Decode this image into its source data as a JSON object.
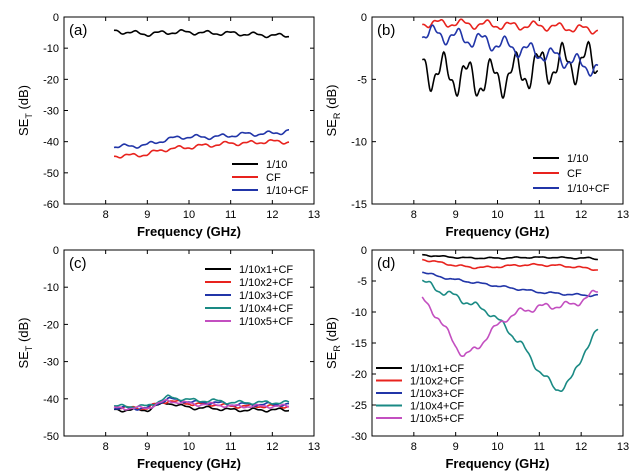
{
  "chart_data": [
    {
      "type": "line",
      "panel_label": "(a)",
      "xlabel": "Frequency (GHz)",
      "ylabel_main": "SE",
      "ylabel_sub": "T",
      "ylabel_unit": " (dB)",
      "xlim": [
        7,
        13
      ],
      "ylim": [
        -60,
        0
      ],
      "x_ticks": [
        8,
        9,
        10,
        11,
        12,
        13
      ],
      "y_ticks": [
        0,
        -10,
        -20,
        -30,
        -40,
        -50,
        -60
      ],
      "legend_position": "lower-right",
      "series": [
        {
          "name": "1/10",
          "color": "#000000",
          "ripple": 0.6,
          "x": [
            8.2,
            8.6,
            9.0,
            9.4,
            9.8,
            10.2,
            10.6,
            11.0,
            11.4,
            11.8,
            12.2,
            12.4
          ],
          "y": [
            -4.5,
            -5.0,
            -5.5,
            -5.0,
            -4.8,
            -5.0,
            -5.2,
            -5.2,
            -5.5,
            -5.8,
            -6.0,
            -6.0
          ]
        },
        {
          "name": "CF",
          "color": "#e8231e",
          "ripple": 0.6,
          "x": [
            8.2,
            8.6,
            9.0,
            9.4,
            9.8,
            10.2,
            10.6,
            11.0,
            11.4,
            11.8,
            12.2,
            12.4
          ],
          "y": [
            -44.5,
            -44.5,
            -44.0,
            -42.5,
            -42.0,
            -41.5,
            -41.0,
            -40.5,
            -40.5,
            -40.0,
            -40.0,
            -40.0
          ]
        },
        {
          "name": "1/10+CF",
          "color": "#2135a8",
          "ripple": 0.6,
          "x": [
            8.2,
            8.6,
            9.0,
            9.4,
            9.8,
            10.2,
            10.6,
            11.0,
            11.4,
            11.8,
            12.2,
            12.4
          ],
          "y": [
            -41.5,
            -41.5,
            -41.0,
            -39.5,
            -38.5,
            -38.5,
            -38.5,
            -38.0,
            -37.5,
            -37.5,
            -37.0,
            -36.5
          ]
        }
      ]
    },
    {
      "type": "line",
      "panel_label": "(b)",
      "xlabel": "Frequency (GHz)",
      "ylabel_main": "SE",
      "ylabel_sub": "R",
      "ylabel_unit": " (dB)",
      "xlim": [
        7,
        13
      ],
      "ylim": [
        -15,
        0
      ],
      "x_ticks": [
        8,
        9,
        10,
        11,
        12,
        13
      ],
      "y_ticks": [
        0,
        -5,
        -10,
        -15
      ],
      "legend_position": "lower-right",
      "series": [
        {
          "name": "1/10",
          "color": "#000000",
          "ripple": 1.4,
          "x": [
            8.2,
            8.6,
            9.0,
            9.4,
            9.8,
            10.2,
            10.6,
            11.0,
            11.4,
            11.8,
            12.2,
            12.4
          ],
          "y": [
            -4.0,
            -4.5,
            -4.7,
            -5.0,
            -5.0,
            -4.7,
            -4.4,
            -4.0,
            -3.8,
            -3.7,
            -3.6,
            -3.6
          ]
        },
        {
          "name": "CF",
          "color": "#e8231e",
          "ripple": 0.3,
          "x": [
            8.2,
            8.6,
            9.0,
            9.4,
            9.8,
            10.2,
            10.6,
            11.0,
            11.4,
            11.8,
            12.2,
            12.4
          ],
          "y": [
            -0.5,
            -0.5,
            -0.5,
            -0.6,
            -0.6,
            -0.7,
            -0.7,
            -0.7,
            -0.8,
            -0.9,
            -1.0,
            -1.0
          ]
        },
        {
          "name": "1/10+CF",
          "color": "#2135a8",
          "ripple": 0.6,
          "x": [
            8.2,
            8.6,
            9.0,
            9.4,
            9.8,
            10.2,
            10.6,
            11.0,
            11.4,
            11.8,
            12.2,
            12.4
          ],
          "y": [
            -1.3,
            -1.4,
            -1.6,
            -1.8,
            -2.0,
            -2.3,
            -2.6,
            -2.9,
            -3.2,
            -3.6,
            -4.0,
            -4.2
          ]
        }
      ]
    },
    {
      "type": "line",
      "panel_label": "(c)",
      "xlabel": "Frequency (GHz)",
      "ylabel_main": "SE",
      "ylabel_sub": "T",
      "ylabel_unit": " (dB)",
      "xlim": [
        7,
        13
      ],
      "ylim": [
        -50,
        0
      ],
      "x_ticks": [
        8,
        9,
        10,
        11,
        12,
        13
      ],
      "y_ticks": [
        0,
        -10,
        -20,
        -30,
        -40,
        -50
      ],
      "legend_position": "upper-right",
      "series": [
        {
          "name": "1/10x1+CF",
          "color": "#000000",
          "ripple": 0.4,
          "x": [
            8.2,
            8.6,
            9.0,
            9.2,
            9.5,
            9.8,
            10.2,
            10.6,
            11.0,
            11.4,
            11.8,
            12.2,
            12.4
          ],
          "y": [
            -43.0,
            -43.0,
            -43.0,
            -42.0,
            -41.0,
            -42.0,
            -42.5,
            -42.5,
            -43.0,
            -43.0,
            -43.0,
            -43.0,
            -43.0
          ]
        },
        {
          "name": "1/10x2+CF",
          "color": "#e8231e",
          "ripple": 0.4,
          "x": [
            8.2,
            8.6,
            9.0,
            9.2,
            9.5,
            9.8,
            10.2,
            10.6,
            11.0,
            11.4,
            11.8,
            12.2,
            12.4
          ],
          "y": [
            -42.0,
            -42.5,
            -42.5,
            -41.5,
            -40.5,
            -41.0,
            -41.5,
            -41.5,
            -42.0,
            -42.0,
            -42.0,
            -42.0,
            -42.0
          ]
        },
        {
          "name": "1/10x3+CF",
          "color": "#2135a8",
          "ripple": 0.4,
          "x": [
            8.2,
            8.6,
            9.0,
            9.2,
            9.5,
            9.8,
            10.2,
            10.6,
            11.0,
            11.4,
            11.8,
            12.2,
            12.4
          ],
          "y": [
            -42.5,
            -42.5,
            -42.5,
            -41.5,
            -40.0,
            -40.5,
            -41.0,
            -41.0,
            -41.5,
            -41.5,
            -41.5,
            -41.5,
            -41.5
          ]
        },
        {
          "name": "1/10x4+CF",
          "color": "#1a8a84",
          "ripple": 0.4,
          "x": [
            8.2,
            8.6,
            9.0,
            9.2,
            9.5,
            9.8,
            10.2,
            10.6,
            11.0,
            11.4,
            11.8,
            12.2,
            12.4
          ],
          "y": [
            -42.0,
            -42.0,
            -42.0,
            -41.0,
            -39.5,
            -40.0,
            -40.5,
            -40.5,
            -41.0,
            -41.0,
            -41.0,
            -41.0,
            -41.0
          ]
        },
        {
          "name": "1/10x5+CF",
          "color": "#c34fc0",
          "ripple": 0.4,
          "x": [
            8.2,
            8.6,
            9.0,
            9.2,
            9.5,
            9.8,
            10.2,
            10.6,
            11.0,
            11.4,
            11.8,
            12.2,
            12.4
          ],
          "y": [
            -42.5,
            -42.5,
            -42.5,
            -41.5,
            -40.5,
            -41.0,
            -41.5,
            -41.5,
            -42.0,
            -42.0,
            -42.0,
            -42.0,
            -42.0
          ]
        }
      ]
    },
    {
      "type": "line",
      "panel_label": "(d)",
      "xlabel": "Frequency (GHz)",
      "ylabel_main": "SE",
      "ylabel_sub": "R",
      "ylabel_unit": " (dB)",
      "xlim": [
        7,
        13
      ],
      "ylim": [
        -30,
        0
      ],
      "x_ticks": [
        8,
        9,
        10,
        11,
        12,
        13
      ],
      "y_ticks": [
        0,
        -5,
        -10,
        -15,
        -20,
        -25,
        -30
      ],
      "legend_position": "lower-left",
      "series": [
        {
          "name": "1/10x1+CF",
          "color": "#000000",
          "ripple": 0.1,
          "x": [
            8.2,
            8.6,
            9.0,
            9.4,
            9.8,
            10.2,
            10.6,
            11.0,
            11.4,
            11.8,
            12.2,
            12.4
          ],
          "y": [
            -0.8,
            -1.0,
            -1.2,
            -1.3,
            -1.3,
            -1.3,
            -1.2,
            -1.2,
            -1.2,
            -1.3,
            -1.3,
            -1.5
          ]
        },
        {
          "name": "1/10x2+CF",
          "color": "#e8231e",
          "ripple": 0.15,
          "x": [
            8.2,
            8.6,
            9.0,
            9.4,
            9.8,
            10.2,
            10.6,
            11.0,
            11.4,
            11.8,
            12.2,
            12.4
          ],
          "y": [
            -1.5,
            -2.0,
            -2.5,
            -2.8,
            -2.8,
            -2.6,
            -2.4,
            -2.4,
            -2.5,
            -2.7,
            -3.0,
            -3.2
          ]
        },
        {
          "name": "1/10x3+CF",
          "color": "#2135a8",
          "ripple": 0.15,
          "x": [
            8.2,
            8.6,
            9.0,
            9.4,
            9.8,
            10.2,
            10.6,
            11.0,
            11.4,
            11.8,
            12.2,
            12.4
          ],
          "y": [
            -3.5,
            -4.3,
            -4.8,
            -5.2,
            -5.6,
            -6.0,
            -6.4,
            -6.8,
            -7.0,
            -7.2,
            -7.3,
            -7.3
          ]
        },
        {
          "name": "1/10x4+CF",
          "color": "#1a8a84",
          "ripple": 0.5,
          "x": [
            8.2,
            8.6,
            9.0,
            9.4,
            9.8,
            10.2,
            10.6,
            11.0,
            11.4,
            11.6,
            11.8,
            12.1,
            12.4
          ],
          "y": [
            -5.0,
            -6.5,
            -7.5,
            -8.8,
            -10.0,
            -12.5,
            -15.5,
            -19.5,
            -22.5,
            -22.0,
            -20.5,
            -16.0,
            -13.0
          ]
        },
        {
          "name": "1/10x5+CF",
          "color": "#c34fc0",
          "ripple": 0.5,
          "x": [
            8.2,
            8.6,
            9.0,
            9.2,
            9.5,
            9.8,
            10.2,
            10.6,
            11.0,
            11.4,
            11.8,
            12.2,
            12.4
          ],
          "y": [
            -8.0,
            -11.0,
            -15.5,
            -17.0,
            -16.0,
            -13.5,
            -11.0,
            -9.8,
            -9.2,
            -9.0,
            -8.8,
            -7.5,
            -6.5
          ]
        }
      ]
    }
  ]
}
